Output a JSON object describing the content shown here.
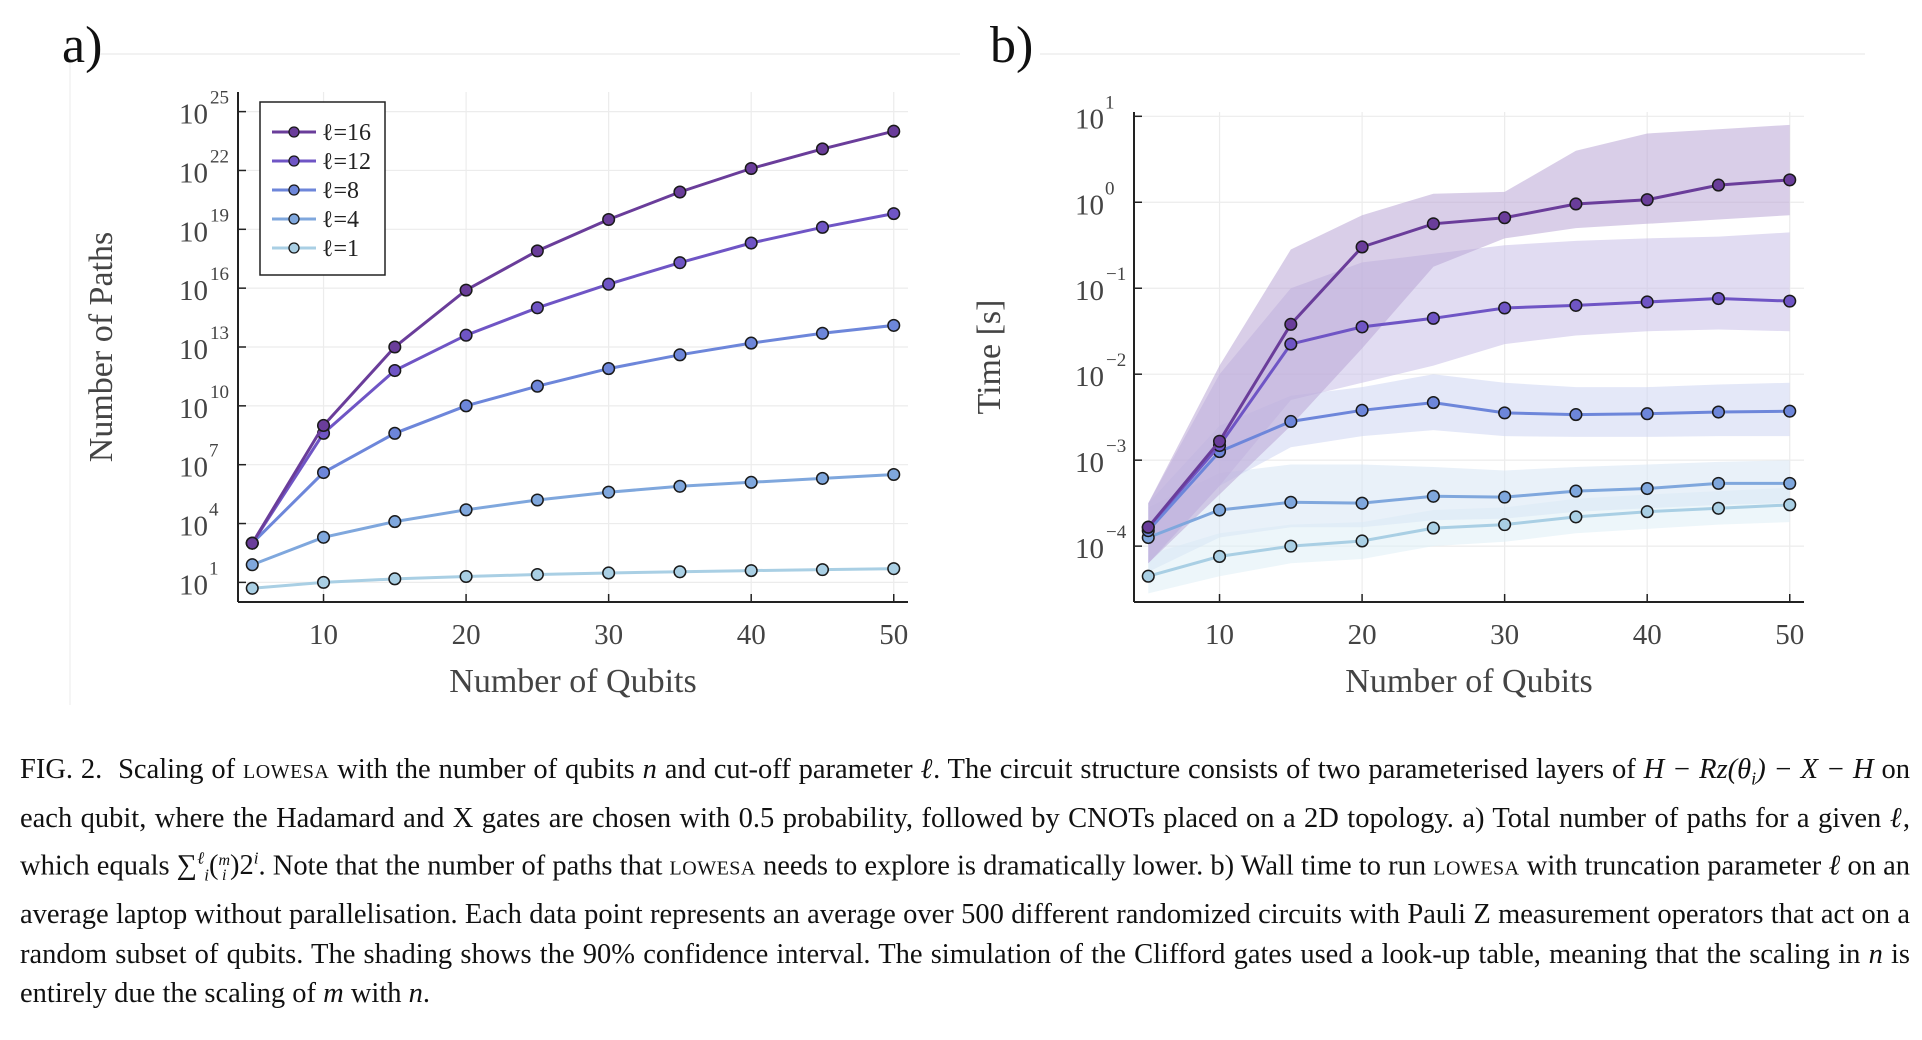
{
  "figure": {
    "panel_a_letter": "a)",
    "panel_b_letter": "b)"
  },
  "chart_data": [
    {
      "type": "line",
      "panel": "a)",
      "title": "",
      "xlabel": "Number of Qubits",
      "ylabel": "Number of Paths",
      "y_scale": "log",
      "xlim": [
        4,
        51
      ],
      "ylim_log10": [
        0,
        26
      ],
      "x_ticks": [
        10,
        20,
        30,
        40,
        50
      ],
      "y_ticks": [
        {
          "base": "10",
          "exp": "1",
          "log10": 1
        },
        {
          "base": "10",
          "exp": "4",
          "log10": 4
        },
        {
          "base": "10",
          "exp": "7",
          "log10": 7
        },
        {
          "base": "10",
          "exp": "10",
          "log10": 10
        },
        {
          "base": "10",
          "exp": "13",
          "log10": 13
        },
        {
          "base": "10",
          "exp": "16",
          "log10": 16
        },
        {
          "base": "10",
          "exp": "19",
          "log10": 19
        },
        {
          "base": "10",
          "exp": "22",
          "log10": 22
        },
        {
          "base": "10",
          "exp": "25",
          "log10": 25
        }
      ],
      "grid": true,
      "legend_position": "top-left",
      "x": [
        5,
        10,
        15,
        20,
        25,
        30,
        35,
        40,
        45,
        50
      ],
      "series": [
        {
          "name": "ℓ=16",
          "color": "#6a3d9a",
          "log10_values": [
            3.0,
            9.0,
            13.0,
            15.9,
            17.9,
            19.5,
            20.9,
            22.1,
            23.1,
            24.0
          ]
        },
        {
          "name": "ℓ=12",
          "color": "#6f55c5",
          "log10_values": [
            3.0,
            8.6,
            11.8,
            13.6,
            15.0,
            16.2,
            17.3,
            18.3,
            19.1,
            19.8
          ]
        },
        {
          "name": "ℓ=8",
          "color": "#6d86da",
          "log10_values": [
            3.0,
            6.6,
            8.6,
            10.0,
            11.0,
            11.9,
            12.6,
            13.2,
            13.7,
            14.1
          ]
        },
        {
          "name": "ℓ=4",
          "color": "#7fa7dd",
          "log10_values": [
            1.9,
            3.3,
            4.1,
            4.7,
            5.2,
            5.6,
            5.9,
            6.1,
            6.3,
            6.5
          ]
        },
        {
          "name": "ℓ=1",
          "color": "#a9cfe4",
          "log10_values": [
            0.7,
            1.0,
            1.18,
            1.3,
            1.4,
            1.48,
            1.54,
            1.6,
            1.65,
            1.7
          ]
        }
      ]
    },
    {
      "type": "line",
      "panel": "b)",
      "title": "",
      "xlabel": "Number of Qubits",
      "ylabel": "Time [s]",
      "y_scale": "log",
      "xlim": [
        4,
        51
      ],
      "ylim_log10": [
        -4.65,
        1.05
      ],
      "x_ticks": [
        10,
        20,
        30,
        40,
        50
      ],
      "y_ticks": [
        {
          "base": "10",
          "exp": "−4",
          "log10": -4
        },
        {
          "base": "10",
          "exp": "−3",
          "log10": -3
        },
        {
          "base": "10",
          "exp": "−2",
          "log10": -2
        },
        {
          "base": "10",
          "exp": "−1",
          "log10": -1
        },
        {
          "base": "10",
          "exp": "0",
          "log10": 0
        },
        {
          "base": "10",
          "exp": "1",
          "log10": 1
        }
      ],
      "grid": true,
      "confidence_band": "90%",
      "x": [
        5,
        10,
        15,
        20,
        25,
        30,
        35,
        40,
        45,
        50
      ],
      "series": [
        {
          "name": "ℓ=16",
          "color": "#6a3d9a",
          "band_color": "#b9a6d6",
          "log10_values": [
            -3.78,
            -2.78,
            -1.42,
            -0.52,
            -0.25,
            -0.18,
            -0.02,
            0.03,
            0.2,
            0.26
          ],
          "log10_lower": [
            -4.2,
            -3.4,
            -2.6,
            -1.7,
            -0.75,
            -0.42,
            -0.3,
            -0.25,
            -0.2,
            -0.15
          ],
          "log10_upper": [
            -3.5,
            -1.9,
            -0.55,
            -0.15,
            0.1,
            0.12,
            0.6,
            0.8,
            0.85,
            0.9
          ]
        },
        {
          "name": "ℓ=12",
          "color": "#6f55c5",
          "band_color": "#c9c0e8",
          "log10_values": [
            -3.78,
            -2.83,
            -1.65,
            -1.45,
            -1.35,
            -1.23,
            -1.2,
            -1.16,
            -1.12,
            -1.15
          ],
          "log10_lower": [
            -4.2,
            -3.3,
            -2.3,
            -2.1,
            -1.9,
            -1.65,
            -1.55,
            -1.5,
            -1.48,
            -1.5
          ],
          "log10_upper": [
            -3.5,
            -2.0,
            -1.0,
            -0.7,
            -0.6,
            -0.5,
            -0.45,
            -0.42,
            -0.4,
            -0.35
          ]
        },
        {
          "name": "ℓ=8",
          "color": "#6d86da",
          "band_color": "#cdd6f2",
          "log10_values": [
            -3.82,
            -2.9,
            -2.55,
            -2.42,
            -2.33,
            -2.45,
            -2.47,
            -2.46,
            -2.44,
            -2.43
          ],
          "log10_lower": [
            -4.2,
            -3.3,
            -2.85,
            -2.72,
            -2.65,
            -2.72,
            -2.73,
            -2.73,
            -2.72,
            -2.72
          ],
          "log10_upper": [
            -3.5,
            -2.6,
            -2.25,
            -2.15,
            -2.0,
            -2.1,
            -2.15,
            -2.15,
            -2.12,
            -2.1
          ]
        },
        {
          "name": "ℓ=4",
          "color": "#7fa7dd",
          "band_color": "#d7e5f4",
          "log10_values": [
            -3.9,
            -3.58,
            -3.49,
            -3.5,
            -3.42,
            -3.43,
            -3.36,
            -3.33,
            -3.27,
            -3.27
          ],
          "log10_lower": [
            -4.3,
            -3.9,
            -3.78,
            -3.78,
            -3.7,
            -3.68,
            -3.6,
            -3.56,
            -3.52,
            -3.5
          ],
          "log10_upper": [
            -3.55,
            -3.15,
            -3.05,
            -3.05,
            -3.08,
            -3.12,
            -3.08,
            -3.05,
            -3.02,
            -3.0
          ]
        },
        {
          "name": "ℓ=1",
          "color": "#a9cfe4",
          "band_color": "#dfeef6",
          "log10_values": [
            -4.35,
            -4.12,
            -4.0,
            -3.94,
            -3.79,
            -3.75,
            -3.66,
            -3.6,
            -3.56,
            -3.52
          ],
          "log10_lower": [
            -4.55,
            -4.35,
            -4.2,
            -4.15,
            -4.0,
            -3.95,
            -3.85,
            -3.8,
            -3.75,
            -3.72
          ],
          "log10_upper": [
            -4.1,
            -3.85,
            -3.75,
            -3.72,
            -3.58,
            -3.55,
            -3.45,
            -3.4,
            -3.36,
            -3.32
          ]
        }
      ]
    }
  ],
  "caption": {
    "fig_label": "FIG. 2.",
    "s1": "Scaling of",
    "name": "lowesa",
    "s2": "with the number of qubits",
    "n": "n",
    "s3": "and cut-off parameter",
    "ell": "ℓ",
    "s4": ".  The circuit structure consists of two parameterised layers of",
    "formula": "H − Rz(θ",
    "formula_sub": "i",
    "formula_end": ") − X − H",
    "s5": "on each qubit, where the Hadamard and X gates are chosen with 0.5 probability, followed by CNOTs placed on a 2D topology.  a) Total number of paths for a given",
    "s6": ", which equals",
    "sum_formula": "∑",
    "sum_sup": "ℓ",
    "sum_sub": "i",
    "binom": "(",
    "binom_top": "m",
    "binom_bottom": "i",
    "binom_close": ")2",
    "pow_sup": "i",
    "s7": ".  Note that the number of paths that",
    "s8": "needs to explore is dramatically lower.  b) Wall time to run",
    "s9": "with truncation parameter",
    "s10": "on an average laptop without parallelisation.  Each data point represents an average over 500 different randomized circuits with Pauli Z measurement operators that act on a random subset of qubits.  The shading shows the 90% confidence interval. The simulation of the Clifford gates used a look-up table, meaning that the scaling in",
    "s11": "is entirely due the scaling of",
    "m": "m",
    "s12": "with",
    "end": "."
  }
}
